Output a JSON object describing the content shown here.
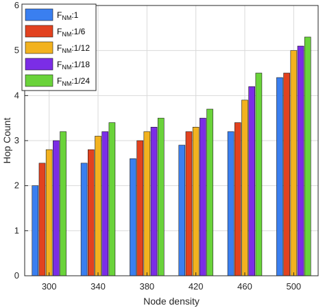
{
  "chart_data": {
    "type": "bar",
    "xlabel": "Node density",
    "ylabel": "Hop Count",
    "categories": [
      "300",
      "340",
      "380",
      "420",
      "460",
      "500"
    ],
    "ylim": [
      0,
      6
    ],
    "yticks": [
      0,
      1,
      2,
      3,
      4,
      5,
      6
    ],
    "grid": true,
    "legend_position": "top-left",
    "series": [
      {
        "name": "F_NM:1",
        "legend": {
          "main": "F",
          "sub": "NM",
          "suffix": ":1"
        },
        "color": "#3a7ff0",
        "values": [
          2.0,
          2.5,
          2.6,
          2.9,
          3.2,
          4.4
        ]
      },
      {
        "name": "F_NM:1/6",
        "legend": {
          "main": "F",
          "sub": "NM",
          "suffix": ":1/6"
        },
        "color": "#e2421f",
        "values": [
          2.5,
          2.8,
          3.0,
          3.2,
          3.4,
          4.5
        ]
      },
      {
        "name": "F_NM:1/12",
        "legend": {
          "main": "F",
          "sub": "NM",
          "suffix": ":1/12"
        },
        "color": "#f2b21f",
        "values": [
          2.8,
          3.1,
          3.2,
          3.3,
          3.9,
          5.0
        ]
      },
      {
        "name": "F_NM:1/18",
        "legend": {
          "main": "F",
          "sub": "NM",
          "suffix": ":1/18"
        },
        "color": "#7b2de6",
        "values": [
          3.0,
          3.2,
          3.3,
          3.5,
          4.2,
          5.1
        ]
      },
      {
        "name": "F_NM:1/24",
        "legend": {
          "main": "F",
          "sub": "NM",
          "suffix": ":1/24"
        },
        "color": "#6ad33a",
        "values": [
          3.2,
          3.4,
          3.5,
          3.7,
          4.5,
          5.3
        ]
      }
    ]
  }
}
